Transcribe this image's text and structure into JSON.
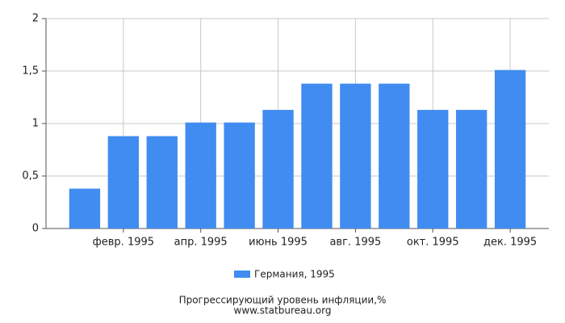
{
  "chart_data": {
    "type": "bar",
    "title": "Прогрессирующий уровень инфляции,%",
    "source": "www.statbureau.org",
    "categories": [
      null,
      "февр. 1995",
      null,
      "апр. 1995",
      null,
      "июнь 1995",
      null,
      "авг. 1995",
      null,
      "окт. 1995",
      null,
      "дек. 1995"
    ],
    "series": [
      {
        "name": "Германия, 1995",
        "color": "#418cf0",
        "values": [
          0.38,
          0.88,
          0.88,
          1.01,
          1.01,
          1.13,
          1.38,
          1.38,
          1.38,
          1.13,
          1.13,
          1.51
        ]
      }
    ],
    "ylim": [
      0,
      2
    ],
    "yticks": [
      0,
      {
        "value": 0.5,
        "label": "0,5"
      },
      1,
      {
        "value": 1.5,
        "label": "1,5"
      },
      2
    ],
    "grid": true
  }
}
